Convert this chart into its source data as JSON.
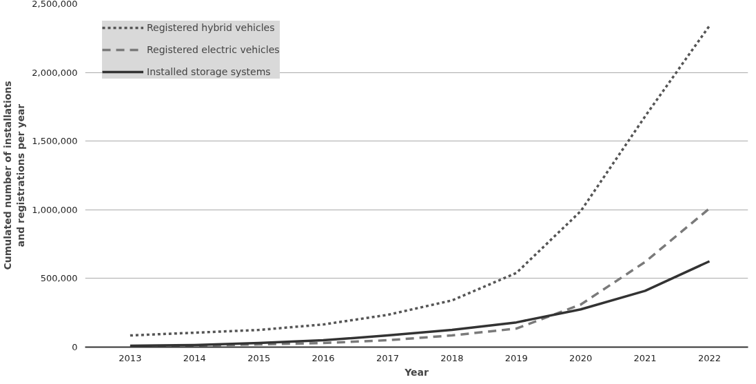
{
  "chart_data": {
    "type": "line",
    "xlabel": "Year",
    "ylabel": "Cumulated number of installations\nand registrations per year",
    "x": [
      2013,
      2014,
      2015,
      2016,
      2017,
      2018,
      2019,
      2020,
      2021,
      2022
    ],
    "xlim": [
      2012.3,
      2022.6
    ],
    "xticks": [
      2013,
      2014,
      2015,
      2016,
      2017,
      2018,
      2019,
      2020,
      2021,
      2022
    ],
    "ylim": [
      0,
      2500000
    ],
    "yticks": [
      {
        "value": 0,
        "label": "0"
      },
      {
        "value": 500000,
        "label": "500,000"
      },
      {
        "value": 1000000,
        "label": "1,000,000"
      },
      {
        "value": 1500000,
        "label": "1,500,000"
      },
      {
        "value": 2000000,
        "label": "2,000,000"
      },
      {
        "value": 2500000,
        "label": "2,500,000"
      }
    ],
    "grid": "y",
    "legend": "top left",
    "marker": "none",
    "series": [
      {
        "name": "Registered hybrid vehicles",
        "color": "#555555",
        "line_style": "dotted",
        "values": [
          85000,
          105000,
          125000,
          165000,
          235000,
          340000,
          540000,
          990000,
          1680000,
          2340000
        ]
      },
      {
        "name": "Registered electric vehicles",
        "color": "#7a7a7a",
        "line_style": "dashed",
        "values": [
          5000,
          10000,
          20000,
          30000,
          50000,
          85000,
          135000,
          310000,
          620000,
          1010000
        ]
      },
      {
        "name": "Installed storage systems",
        "color": "#333333",
        "line_style": "solid",
        "values": [
          10000,
          15000,
          30000,
          50000,
          85000,
          125000,
          180000,
          275000,
          410000,
          625000
        ]
      }
    ]
  }
}
